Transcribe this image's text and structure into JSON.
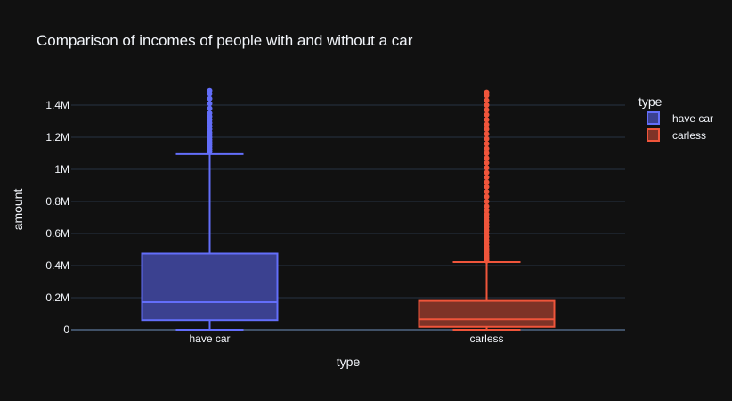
{
  "chart_data": {
    "type": "box",
    "title": "Comparison of incomes of people with and without a car",
    "xlabel": "type",
    "ylabel": "amount",
    "ylim": [
      0,
      1500000
    ],
    "yticks": [
      0,
      200000,
      400000,
      600000,
      800000,
      1000000,
      1200000,
      1400000
    ],
    "ytick_labels": [
      "0",
      "0.2M",
      "0.4M",
      "0.6M",
      "0.8M",
      "1M",
      "1.2M",
      "1.4M"
    ],
    "grid": true,
    "legend": {
      "title": "type",
      "position": "top-right"
    },
    "categories": [
      "have car",
      "carless"
    ],
    "series": [
      {
        "name": "have car",
        "color": "#636efa",
        "fill": "#3b4190",
        "min": 0,
        "q1": 60000,
        "median": 172000,
        "q3": 475000,
        "max": 1095000,
        "outliers": [
          1110000,
          1125000,
          1140000,
          1155000,
          1170000,
          1185000,
          1200000,
          1215000,
          1230000,
          1250000,
          1270000,
          1290000,
          1310000,
          1330000,
          1350000,
          1380000,
          1410000,
          1440000,
          1470000,
          1490000
        ]
      },
      {
        "name": "carless",
        "color": "#ef553b",
        "fill": "#7e3327",
        "min": 0,
        "q1": 18000,
        "median": 65000,
        "q3": 180000,
        "max": 422000,
        "outliers": [
          430000,
          440000,
          450000,
          462000,
          475000,
          490000,
          505000,
          520000,
          540000,
          560000,
          580000,
          600000,
          620000,
          640000,
          660000,
          680000,
          700000,
          720000,
          745000,
          770000,
          800000,
          830000,
          860000,
          890000,
          920000,
          950000,
          980000,
          1010000,
          1040000,
          1070000,
          1100000,
          1130000,
          1160000,
          1190000,
          1220000,
          1250000,
          1280000,
          1310000,
          1340000,
          1370000,
          1400000,
          1430000,
          1460000,
          1480000
        ]
      }
    ]
  }
}
